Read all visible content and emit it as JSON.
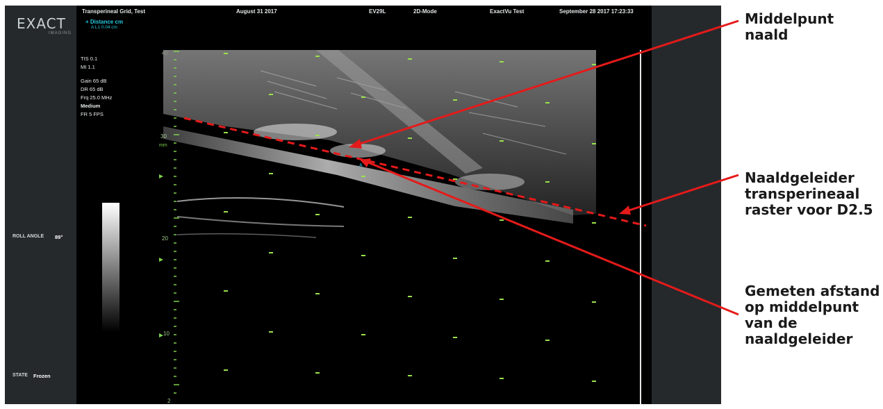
{
  "window": {
    "header": {
      "protocol": "Transperineal Grid, Test",
      "exam_date": "August 31 2017",
      "probe": "EV29L",
      "mode": "2D-Mode",
      "patient": "ExactVu Test",
      "datetime": "September 28 2017 17:23:33"
    },
    "logo": {
      "text": "EXACT",
      "subtext": "IMAGING"
    },
    "measurement": {
      "title": "Distance",
      "unit": "cm",
      "value": "A L1 0.04 cm"
    },
    "params": {
      "tis": "TIS 0.1",
      "mi": "MI 1.1",
      "gain": "Gain 65 dB",
      "dr": "DR 65 dB",
      "frq": "Frq 25.0 MHz",
      "preset": "Medium",
      "fr": "FR 5 FPS"
    },
    "sidebar": {
      "roll_angle_label": "ROLL ANGLE",
      "roll_angle_value": "89°",
      "state_label": "STATE",
      "state_value": "Frozen"
    },
    "depth_scale": {
      "labels": [
        "40",
        "30",
        "20",
        "10",
        "2"
      ],
      "unit": "mm"
    }
  },
  "annotations": {
    "needle_midpoint": "Middelpunt naald",
    "needle_guide": "Naaldgeleider transperineaal raster voor D2.5",
    "measured_distance": "Gemeten afstand op middelpunt van de naaldgeleider"
  },
  "colors": {
    "annotation_arrow": "#e51a1a",
    "grid_dots": "#9be34a",
    "measurement_text": "#24c9e0",
    "sidebar": "#26292c"
  }
}
